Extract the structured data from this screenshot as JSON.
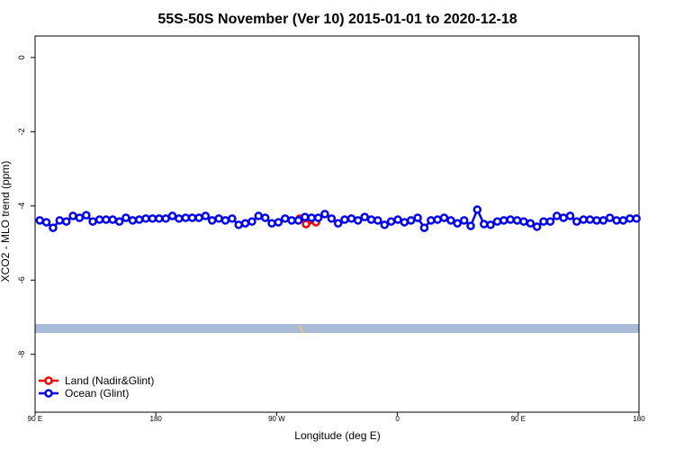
{
  "chart_data": {
    "type": "line",
    "title": "55S-50S November (Ver 10)   2015-01-01 to 2020-12-18",
    "x_label": "Longitude (deg E)",
    "y_label": "XCO2 - MLO trend (ppm)",
    "xlim": [
      90,
      540
    ],
    "ylim": [
      -9.56,
      0.58
    ],
    "xticks": [
      {
        "value": 90,
        "label": "90 E"
      },
      {
        "value": 180,
        "label": "180"
      },
      {
        "value": 270,
        "label": "90 W"
      },
      {
        "value": 360,
        "label": "0"
      },
      {
        "value": 450,
        "label": "90 E"
      },
      {
        "value": 540,
        "label": "180"
      }
    ],
    "yticks": [
      0,
      -2,
      -4,
      -6,
      -8
    ],
    "legend": "bottom-left",
    "series": [
      {
        "name": "Land (Nadir&Glint)",
        "color": "#ff0000",
        "x": [
          287.2,
          291.9,
          299.3
        ],
        "values": [
          -4.34,
          -4.49,
          -4.44
        ]
      },
      {
        "name": "Ocean (Glint)",
        "color": "#0000ff",
        "x": [
          93.5,
          98.4,
          103.4,
          108.3,
          113.3,
          118.2,
          123.1,
          128.1,
          133.0,
          138.0,
          142.9,
          147.8,
          152.8,
          157.7,
          162.7,
          167.6,
          172.5,
          177.5,
          182.4,
          187.4,
          192.3,
          197.2,
          202.2,
          207.1,
          212.1,
          217.0,
          221.9,
          226.9,
          231.8,
          236.8,
          241.7,
          246.6,
          251.6,
          256.5,
          261.5,
          266.4,
          271.3,
          276.3,
          281.2,
          286.2,
          291.1,
          296.0,
          301.0,
          305.9,
          310.9,
          315.8,
          320.7,
          325.7,
          330.6,
          335.6,
          340.5,
          345.4,
          350.4,
          355.3,
          360.3,
          365.2,
          370.1,
          375.1,
          380.0,
          385.0,
          389.9,
          394.8,
          399.8,
          404.7,
          409.7,
          414.6,
          419.5,
          424.5,
          429.4,
          434.4,
          439.3,
          444.2,
          449.2,
          454.1,
          459.1,
          464.0,
          468.9,
          473.9,
          478.8,
          483.8,
          488.7,
          493.6,
          498.6,
          503.5,
          508.5,
          513.4,
          518.3,
          523.3,
          528.2,
          533.2,
          538.1
        ],
        "values": [
          -4.39,
          -4.44,
          -4.59,
          -4.39,
          -4.42,
          -4.27,
          -4.32,
          -4.25,
          -4.42,
          -4.37,
          -4.37,
          -4.37,
          -4.42,
          -4.32,
          -4.39,
          -4.37,
          -4.34,
          -4.34,
          -4.34,
          -4.34,
          -4.27,
          -4.34,
          -4.32,
          -4.32,
          -4.32,
          -4.27,
          -4.39,
          -4.34,
          -4.39,
          -4.34,
          -4.51,
          -4.47,
          -4.42,
          -4.27,
          -4.32,
          -4.47,
          -4.44,
          -4.34,
          -4.39,
          -4.39,
          -4.3,
          -4.32,
          -4.32,
          -4.22,
          -4.34,
          -4.47,
          -4.37,
          -4.34,
          -4.39,
          -4.3,
          -4.37,
          -4.39,
          -4.51,
          -4.42,
          -4.37,
          -4.44,
          -4.39,
          -4.32,
          -4.59,
          -4.39,
          -4.37,
          -4.32,
          -4.39,
          -4.47,
          -4.39,
          -4.54,
          -4.1,
          -4.49,
          -4.51,
          -4.42,
          -4.39,
          -4.37,
          -4.39,
          -4.42,
          -4.47,
          -4.56,
          -4.42,
          -4.42,
          -4.27,
          -4.32,
          -4.27,
          -4.42,
          -4.37,
          -4.37,
          -4.39,
          -4.39,
          -4.32,
          -4.39,
          -4.39,
          -4.34,
          -4.34
        ]
      }
    ]
  }
}
